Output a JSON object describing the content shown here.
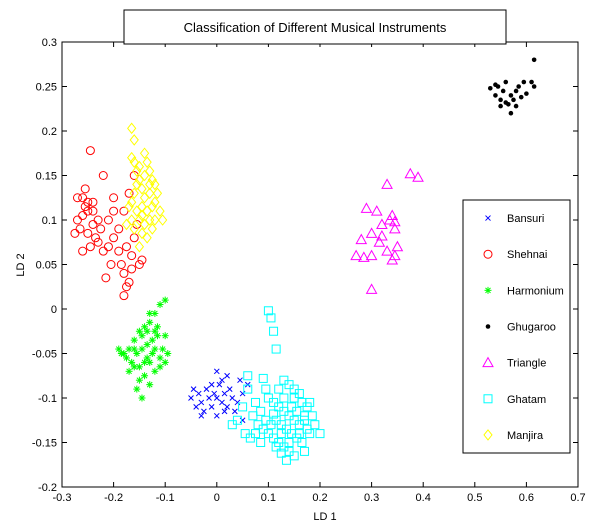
{
  "chart_data": {
    "type": "scatter",
    "title": "Classification of Different Musical Instruments",
    "xlabel": "LD 1",
    "ylabel": "LD 2",
    "xlim": [
      -0.3,
      0.7
    ],
    "ylim": [
      -0.2,
      0.3
    ],
    "xticks": [
      -0.3,
      -0.2,
      -0.1,
      0,
      0.1,
      0.2,
      0.3,
      0.4,
      0.5,
      0.6,
      0.7
    ],
    "xtick_labels": [
      "-0.3",
      "-0.2",
      "-0.1",
      "0",
      "0.1",
      "0.2",
      "0.3",
      "0.4",
      "0.5",
      "0.6",
      "0.7"
    ],
    "yticks": [
      -0.2,
      -0.15,
      -0.1,
      -0.05,
      0,
      0.05,
      0.1,
      0.15,
      0.2,
      0.25,
      0.3
    ],
    "ytick_labels": [
      "-0.2",
      "-0.15",
      "-0.1",
      "-0.05",
      "0",
      "0.05",
      "0.1",
      "0.15",
      "0.2",
      "0.25",
      "0.3"
    ],
    "grid": false,
    "legend_position": "right",
    "series": [
      {
        "name": "Bansuri",
        "marker": "x",
        "color": "#0000ff",
        "points": [
          [
            -0.05,
            -0.1
          ],
          [
            -0.04,
            -0.11
          ],
          [
            -0.035,
            -0.095
          ],
          [
            -0.03,
            -0.105
          ],
          [
            -0.02,
            -0.09
          ],
          [
            -0.015,
            -0.1
          ],
          [
            -0.01,
            -0.11
          ],
          [
            -0.005,
            -0.095
          ],
          [
            0,
            -0.1
          ],
          [
            0.005,
            -0.085
          ],
          [
            0.01,
            -0.105
          ],
          [
            0.015,
            -0.095
          ],
          [
            0.02,
            -0.11
          ],
          [
            0.025,
            -0.09
          ],
          [
            0.03,
            -0.1
          ],
          [
            0.04,
            -0.105
          ],
          [
            0.05,
            -0.095
          ],
          [
            -0.03,
            -0.12
          ],
          [
            0.0,
            -0.12
          ],
          [
            0.01,
            -0.08
          ],
          [
            0.02,
            -0.075
          ],
          [
            -0.01,
            -0.085
          ],
          [
            -0.045,
            -0.09
          ],
          [
            0.035,
            -0.115
          ],
          [
            0.06,
            -0.085
          ],
          [
            0.05,
            -0.125
          ],
          [
            -0.025,
            -0.115
          ],
          [
            0.045,
            -0.08
          ],
          [
            0.0,
            -0.07
          ],
          [
            0.015,
            -0.115
          ]
        ]
      },
      {
        "name": "Shehnai",
        "marker": "o",
        "color": "#ff0000",
        "points": [
          [
            -0.245,
            0.178
          ],
          [
            -0.26,
            0.125
          ],
          [
            -0.25,
            0.12
          ],
          [
            -0.24,
            0.11
          ],
          [
            -0.255,
            0.115
          ],
          [
            -0.27,
            0.1
          ],
          [
            -0.265,
            0.09
          ],
          [
            -0.25,
            0.085
          ],
          [
            -0.24,
            0.095
          ],
          [
            -0.23,
            0.075
          ],
          [
            -0.22,
            0.065
          ],
          [
            -0.21,
            0.07
          ],
          [
            -0.2,
            0.08
          ],
          [
            -0.19,
            0.065
          ],
          [
            -0.185,
            0.05
          ],
          [
            -0.18,
            0.04
          ],
          [
            -0.175,
            0.025
          ],
          [
            -0.17,
            0.03
          ],
          [
            -0.165,
            0.06
          ],
          [
            -0.16,
            0.08
          ],
          [
            -0.155,
            0.095
          ],
          [
            -0.15,
            0.05
          ],
          [
            -0.145,
            0.055
          ],
          [
            -0.16,
            0.15
          ],
          [
            -0.17,
            0.13
          ],
          [
            -0.18,
            0.11
          ],
          [
            -0.2,
            0.125
          ],
          [
            -0.21,
            0.1
          ],
          [
            -0.225,
            0.09
          ],
          [
            -0.235,
            0.08
          ],
          [
            -0.26,
            0.065
          ],
          [
            -0.275,
            0.085
          ],
          [
            -0.255,
            0.135
          ],
          [
            -0.22,
            0.15
          ],
          [
            -0.19,
            0.09
          ],
          [
            -0.205,
            0.05
          ],
          [
            -0.215,
            0.035
          ],
          [
            -0.175,
            0.07
          ],
          [
            -0.23,
            0.1
          ],
          [
            -0.245,
            0.07
          ],
          [
            -0.26,
            0.105
          ],
          [
            -0.27,
            0.125
          ],
          [
            -0.24,
            0.12
          ],
          [
            -0.18,
            0.015
          ],
          [
            -0.165,
            0.045
          ],
          [
            -0.25,
            0.11
          ],
          [
            -0.2,
            0.11
          ]
        ]
      },
      {
        "name": "Harmonium",
        "marker": "*",
        "color": "#00ff00",
        "points": [
          [
            -0.1,
            0.01
          ],
          [
            -0.11,
            0.005
          ],
          [
            -0.12,
            -0.005
          ],
          [
            -0.13,
            -0.015
          ],
          [
            -0.14,
            -0.02
          ],
          [
            -0.15,
            -0.025
          ],
          [
            -0.16,
            -0.035
          ],
          [
            -0.17,
            -0.045
          ],
          [
            -0.18,
            -0.05
          ],
          [
            -0.175,
            -0.055
          ],
          [
            -0.165,
            -0.06
          ],
          [
            -0.155,
            -0.05
          ],
          [
            -0.145,
            -0.045
          ],
          [
            -0.135,
            -0.04
          ],
          [
            -0.125,
            -0.035
          ],
          [
            -0.115,
            -0.03
          ],
          [
            -0.105,
            -0.045
          ],
          [
            -0.095,
            -0.05
          ],
          [
            -0.1,
            -0.06
          ],
          [
            -0.11,
            -0.065
          ],
          [
            -0.12,
            -0.07
          ],
          [
            -0.13,
            -0.06
          ],
          [
            -0.14,
            -0.075
          ],
          [
            -0.15,
            -0.08
          ],
          [
            -0.155,
            -0.09
          ],
          [
            -0.16,
            -0.065
          ],
          [
            -0.17,
            -0.07
          ],
          [
            -0.185,
            -0.05
          ],
          [
            -0.19,
            -0.045
          ],
          [
            -0.135,
            -0.055
          ],
          [
            -0.125,
            -0.05
          ],
          [
            -0.115,
            -0.02
          ],
          [
            -0.145,
            -0.03
          ],
          [
            -0.13,
            -0.005
          ],
          [
            -0.12,
            -0.045
          ],
          [
            -0.14,
            -0.06
          ],
          [
            -0.15,
            -0.065
          ],
          [
            -0.16,
            -0.045
          ],
          [
            -0.11,
            -0.055
          ],
          [
            -0.1,
            -0.03
          ],
          [
            -0.13,
            -0.085
          ],
          [
            -0.145,
            -0.1
          ],
          [
            -0.12,
            -0.025
          ],
          [
            -0.135,
            -0.025
          ]
        ]
      },
      {
        "name": "Ghugaroo",
        "marker": "dot",
        "color": "#000000",
        "points": [
          [
            0.615,
            0.28
          ],
          [
            0.53,
            0.248
          ],
          [
            0.54,
            0.24
          ],
          [
            0.545,
            0.25
          ],
          [
            0.55,
            0.235
          ],
          [
            0.555,
            0.245
          ],
          [
            0.56,
            0.255
          ],
          [
            0.565,
            0.23
          ],
          [
            0.57,
            0.24
          ],
          [
            0.575,
            0.235
          ],
          [
            0.58,
            0.245
          ],
          [
            0.585,
            0.25
          ],
          [
            0.59,
            0.238
          ],
          [
            0.6,
            0.242
          ],
          [
            0.61,
            0.255
          ],
          [
            0.615,
            0.25
          ],
          [
            0.55,
            0.228
          ],
          [
            0.57,
            0.22
          ],
          [
            0.56,
            0.232
          ],
          [
            0.58,
            0.228
          ],
          [
            0.54,
            0.252
          ],
          [
            0.595,
            0.255
          ]
        ]
      },
      {
        "name": "Triangle",
        "marker": "triangle",
        "color": "#ff00ff",
        "points": [
          [
            0.375,
            0.152
          ],
          [
            0.39,
            0.148
          ],
          [
            0.33,
            0.14
          ],
          [
            0.29,
            0.113
          ],
          [
            0.31,
            0.11
          ],
          [
            0.32,
            0.095
          ],
          [
            0.335,
            0.1
          ],
          [
            0.34,
            0.105
          ],
          [
            0.345,
            0.09
          ],
          [
            0.3,
            0.085
          ],
          [
            0.28,
            0.078
          ],
          [
            0.27,
            0.06
          ],
          [
            0.285,
            0.058
          ],
          [
            0.3,
            0.06
          ],
          [
            0.315,
            0.075
          ],
          [
            0.33,
            0.065
          ],
          [
            0.345,
            0.06
          ],
          [
            0.35,
            0.07
          ],
          [
            0.3,
            0.022
          ],
          [
            0.34,
            0.055
          ],
          [
            0.32,
            0.082
          ],
          [
            0.345,
            0.098
          ]
        ]
      },
      {
        "name": "Ghatam",
        "marker": "square",
        "color": "#00ffff",
        "points": [
          [
            0.1,
            -0.002
          ],
          [
            0.105,
            -0.01
          ],
          [
            0.11,
            -0.025
          ],
          [
            0.115,
            -0.045
          ],
          [
            0.09,
            -0.078
          ],
          [
            0.095,
            -0.09
          ],
          [
            0.1,
            -0.1
          ],
          [
            0.11,
            -0.105
          ],
          [
            0.12,
            -0.11
          ],
          [
            0.13,
            -0.115
          ],
          [
            0.14,
            -0.12
          ],
          [
            0.15,
            -0.125
          ],
          [
            0.16,
            -0.13
          ],
          [
            0.17,
            -0.125
          ],
          [
            0.175,
            -0.135
          ],
          [
            0.18,
            -0.14
          ],
          [
            0.185,
            -0.12
          ],
          [
            0.19,
            -0.13
          ],
          [
            0.07,
            -0.12
          ],
          [
            0.08,
            -0.13
          ],
          [
            0.09,
            -0.135
          ],
          [
            0.1,
            -0.14
          ],
          [
            0.11,
            -0.145
          ],
          [
            0.12,
            -0.15
          ],
          [
            0.13,
            -0.155
          ],
          [
            0.14,
            -0.16
          ],
          [
            0.15,
            -0.165
          ],
          [
            0.135,
            -0.17
          ],
          [
            0.125,
            -0.162
          ],
          [
            0.145,
            -0.14
          ],
          [
            0.155,
            -0.145
          ],
          [
            0.165,
            -0.15
          ],
          [
            0.115,
            -0.125
          ],
          [
            0.125,
            -0.13
          ],
          [
            0.135,
            -0.135
          ],
          [
            0.145,
            -0.11
          ],
          [
            0.155,
            -0.115
          ],
          [
            0.165,
            -0.105
          ],
          [
            0.175,
            -0.11
          ],
          [
            0.06,
            -0.09
          ],
          [
            0.05,
            -0.11
          ],
          [
            0.04,
            -0.125
          ],
          [
            0.03,
            -0.13
          ],
          [
            0.055,
            -0.14
          ],
          [
            0.065,
            -0.145
          ],
          [
            0.075,
            -0.14
          ],
          [
            0.085,
            -0.115
          ],
          [
            0.095,
            -0.125
          ],
          [
            0.105,
            -0.13
          ],
          [
            0.14,
            -0.085
          ],
          [
            0.15,
            -0.09
          ],
          [
            0.16,
            -0.095
          ],
          [
            0.13,
            -0.08
          ],
          [
            0.12,
            -0.09
          ],
          [
            0.2,
            -0.14
          ],
          [
            0.17,
            -0.16
          ],
          [
            0.115,
            -0.155
          ],
          [
            0.13,
            -0.1
          ],
          [
            0.15,
            -0.1
          ],
          [
            0.18,
            -0.105
          ],
          [
            0.06,
            -0.075
          ],
          [
            0.075,
            -0.105
          ],
          [
            0.085,
            -0.15
          ],
          [
            0.14,
            -0.15
          ],
          [
            0.16,
            -0.14
          ],
          [
            0.125,
            -0.14
          ],
          [
            0.11,
            -0.118
          ],
          [
            0.17,
            -0.12
          ]
        ]
      },
      {
        "name": "Manjira",
        "marker": "diamond",
        "color": "#ffff00",
        "points": [
          [
            -0.165,
            0.203
          ],
          [
            -0.16,
            0.19
          ],
          [
            -0.165,
            0.17
          ],
          [
            -0.16,
            0.165
          ],
          [
            -0.15,
            0.16
          ],
          [
            -0.14,
            0.175
          ],
          [
            -0.135,
            0.165
          ],
          [
            -0.13,
            0.155
          ],
          [
            -0.125,
            0.145
          ],
          [
            -0.12,
            0.14
          ],
          [
            -0.13,
            0.13
          ],
          [
            -0.14,
            0.125
          ],
          [
            -0.145,
            0.135
          ],
          [
            -0.15,
            0.145
          ],
          [
            -0.155,
            0.14
          ],
          [
            -0.16,
            0.13
          ],
          [
            -0.165,
            0.12
          ],
          [
            -0.17,
            0.115
          ],
          [
            -0.145,
            0.115
          ],
          [
            -0.135,
            0.11
          ],
          [
            -0.125,
            0.115
          ],
          [
            -0.12,
            0.12
          ],
          [
            -0.11,
            0.11
          ],
          [
            -0.105,
            0.1
          ],
          [
            -0.13,
            0.1
          ],
          [
            -0.14,
            0.095
          ],
          [
            -0.15,
            0.1
          ],
          [
            -0.155,
            0.11
          ],
          [
            -0.145,
            0.085
          ],
          [
            -0.135,
            0.08
          ],
          [
            -0.15,
            0.07
          ],
          [
            -0.16,
            0.09
          ],
          [
            -0.125,
            0.09
          ],
          [
            -0.115,
            0.13
          ],
          [
            -0.14,
            0.15
          ],
          [
            -0.155,
            0.155
          ],
          [
            -0.13,
            0.14
          ],
          [
            -0.12,
            0.1
          ],
          [
            -0.145,
            0.105
          ],
          [
            -0.165,
            0.1
          ],
          [
            -0.175,
            0.095
          ]
        ]
      }
    ]
  }
}
